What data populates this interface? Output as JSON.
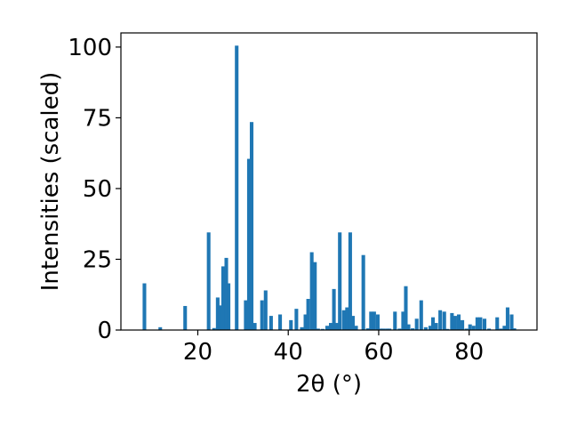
{
  "chart_data": {
    "type": "bar",
    "title": "",
    "xlabel": "2θ (°)",
    "ylabel": "Intensities (scaled)",
    "xlim": [
      3,
      95
    ],
    "ylim": [
      0,
      105
    ],
    "x_ticks": [
      20,
      40,
      60,
      80
    ],
    "y_ticks": [
      0,
      25,
      50,
      75,
      100
    ],
    "grid": false,
    "bar_color": "#1f77b4",
    "bar_width": 0.8,
    "series": [
      {
        "x": [
          8.2,
          11.7,
          17.2,
          22.4,
          23.6,
          24.4,
          25.0,
          25.6,
          26.3,
          26.8,
          28.6,
          30.6,
          31.3,
          31.9,
          32.6,
          34.2,
          35.0,
          36.2,
          38.2,
          40.6,
          41.8,
          43.0,
          43.8,
          44.4,
          45.2,
          45.9,
          46.6,
          47.6,
          48.6,
          49.4,
          50.1,
          50.7,
          51.4,
          52.3,
          53.0,
          53.7,
          54.3,
          55.0,
          56.6,
          57.6,
          58.3,
          59.0,
          59.8,
          60.4,
          61.0,
          61.8,
          62.4,
          63.6,
          64.6,
          65.4,
          66.0,
          66.6,
          67.5,
          68.4,
          69.4,
          70.4,
          71.4,
          72.0,
          72.7,
          73.6,
          74.5,
          75.2,
          76.2,
          76.9,
          77.7,
          78.5,
          79.4,
          80.2,
          81.0,
          81.8,
          82.5,
          83.4,
          84.4,
          86.2,
          87.0,
          87.8,
          88.5,
          89.4,
          90.0
        ],
        "values": [
          16.5,
          1.0,
          8.5,
          34.5,
          0.7,
          11.5,
          8.7,
          22.5,
          25.5,
          16.5,
          100.5,
          10.5,
          60.5,
          73.5,
          2.5,
          10.5,
          14.0,
          5.0,
          5.5,
          3.5,
          7.5,
          1.0,
          5.5,
          11.0,
          27.5,
          24.0,
          0.5,
          0.4,
          1.5,
          2.5,
          14.5,
          2.5,
          34.5,
          7.0,
          8.0,
          34.5,
          5.0,
          1.5,
          26.5,
          0.6,
          6.5,
          6.5,
          5.5,
          0.5,
          0.5,
          0.5,
          0.5,
          6.5,
          0.5,
          6.5,
          15.5,
          2.0,
          0.6,
          4.0,
          10.5,
          1.0,
          1.5,
          4.5,
          2.5,
          7.0,
          6.5,
          0.4,
          6.0,
          5.0,
          5.5,
          3.5,
          0.5,
          2.0,
          1.5,
          4.5,
          4.5,
          4.0,
          0.5,
          4.5,
          0.5,
          1.5,
          8.0,
          5.5,
          0.6
        ]
      }
    ]
  }
}
